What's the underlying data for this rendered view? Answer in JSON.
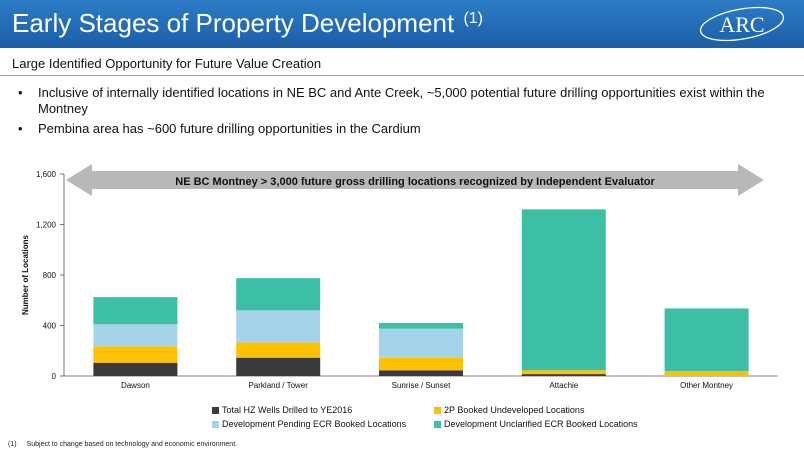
{
  "header": {
    "title": "Early Stages of Property Development",
    "title_sup": "(1)",
    "logo_text": "ARC"
  },
  "subtitle": "Large Identified Opportunity for Future Value Creation",
  "bullets": [
    "Inclusive of internally identified locations in NE BC and Ante Creek, ~5,000 potential future drilling opportunities exist within the Montney",
    "Pembina area has ~600 future drilling opportunities in the Cardium"
  ],
  "chart_data": {
    "type": "bar",
    "stacked": true,
    "ylabel": "Number of Locations",
    "xlabel": "",
    "ylim": [
      0,
      1600
    ],
    "yticks": [
      "0",
      "400",
      "800",
      "1,200",
      "1,600"
    ],
    "categories": [
      "Dawson",
      "Parkland / Tower",
      "Sunrise / Sunset",
      "Attachie",
      "Other Montney"
    ],
    "series": [
      {
        "name": "Total HZ Wells Drilled to YE2016",
        "color": "#3b3b3b",
        "values": [
          105,
          145,
          45,
          15,
          0
        ]
      },
      {
        "name": "2P Booked Undeveloped Locations",
        "color": "#ffc000",
        "values": [
          130,
          120,
          100,
          30,
          40
        ]
      },
      {
        "name": "Development Pending ECR Booked Locations",
        "color": "#a3d4ea",
        "values": [
          175,
          255,
          230,
          0,
          0
        ]
      },
      {
        "name": "Development Unclarified ECR Booked Locations",
        "color": "#3dbfa6",
        "values": [
          215,
          255,
          45,
          1275,
          495
        ]
      }
    ],
    "annotation": "NE BC Montney > 3,000 future gross drilling locations recognized by Independent Evaluator",
    "grid": false,
    "legend_position": "bottom"
  },
  "footnote": {
    "mark": "(1)",
    "text": "Subject to change based on technology and economic environment."
  }
}
